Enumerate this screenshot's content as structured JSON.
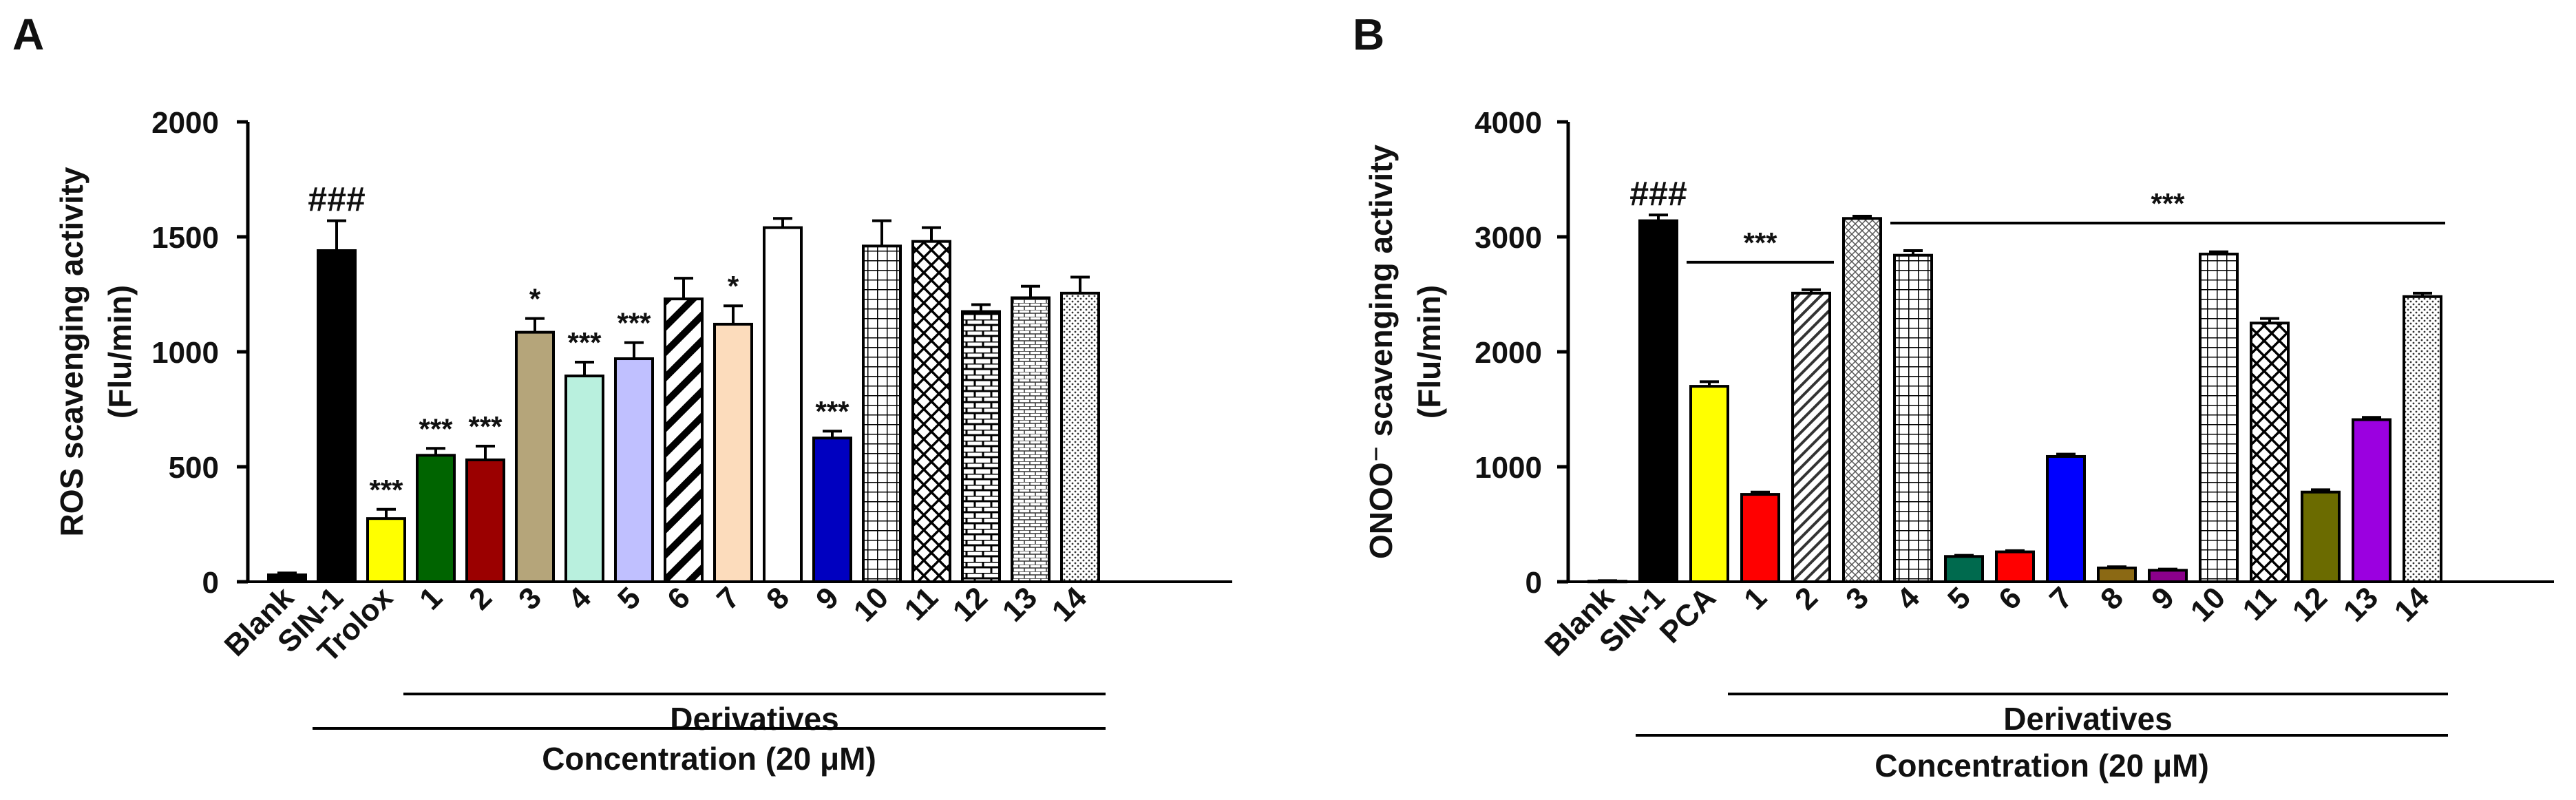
{
  "figure": {
    "panels": [
      "A",
      "B"
    ]
  },
  "chart_data": [
    {
      "panel": "A",
      "type": "bar",
      "title": "",
      "ylabel": "ROS scavenging activity (Flu/min)",
      "ylabel_lines": [
        "ROS scavenging activity",
        "(Flu/min)"
      ],
      "xlabel": "Concentration (20 μM)",
      "group_label": "Derivatives",
      "ylim": [
        0,
        2000
      ],
      "yticks": [
        "0",
        "500",
        "1000",
        "1500",
        "2000"
      ],
      "categories": [
        "Blank",
        "SIN-1",
        "Trolox",
        "1",
        "2",
        "3",
        "4",
        "5",
        "6",
        "7",
        "8",
        "9",
        "10",
        "11",
        "12",
        "13",
        "14"
      ],
      "values": [
        30,
        1440,
        275,
        550,
        530,
        1085,
        895,
        970,
        1230,
        1120,
        1540,
        625,
        1460,
        1480,
        1175,
        1235,
        1255
      ],
      "errors": [
        8,
        130,
        40,
        30,
        60,
        60,
        60,
        70,
        90,
        80,
        40,
        30,
        110,
        60,
        30,
        50,
        70
      ],
      "annotations": [
        "",
        "###",
        "***",
        "***",
        "***",
        "*",
        "***",
        "***",
        "",
        "*",
        "",
        "***",
        "",
        "",
        "",
        "",
        ""
      ],
      "fills": [
        "#000000",
        "#000000",
        "#ffff00",
        "#006400",
        "#9b0000",
        "#b5a57a",
        "#b9f0de",
        "#c0c0ff",
        "hatch-diag",
        "#fcdcbc",
        "#ffffff",
        "#0000c0",
        "grid",
        "crosshatch",
        "brick",
        "brick-fine",
        "dots"
      ],
      "grid": false,
      "legend": "none"
    },
    {
      "panel": "B",
      "type": "bar",
      "title": "",
      "ylabel": "ONOO⁻ scavenging activity (Flu/min)",
      "ylabel_lines": [
        "ONOO⁻ scavenging activity",
        "(Flu/min)"
      ],
      "xlabel": "Concentration (20 μM)",
      "group_label": "Derivatives",
      "ylim": [
        0,
        4000
      ],
      "yticks": [
        "0",
        "1000",
        "2000",
        "3000",
        "4000"
      ],
      "categories": [
        "Blank",
        "SIN-1",
        "PCA",
        "1",
        "2",
        "3",
        "4",
        "5",
        "6",
        "7",
        "8",
        "9",
        "10",
        "11",
        "12",
        "13",
        "14"
      ],
      "values": [
        5,
        3140,
        1700,
        760,
        2510,
        3160,
        2840,
        220,
        260,
        1090,
        120,
        100,
        2850,
        2250,
        780,
        1410,
        2480
      ],
      "errors": [
        5,
        50,
        40,
        20,
        30,
        20,
        40,
        10,
        10,
        20,
        10,
        10,
        20,
        40,
        20,
        20,
        30
      ],
      "annotations": [
        "",
        "###",
        "",
        "",
        "",
        "",
        "",
        "",
        "",
        "",
        "",
        "",
        "",
        "",
        "",
        "",
        ""
      ],
      "sig_lines": [
        {
          "from": "PCA",
          "to": "2",
          "label": "***"
        },
        {
          "from": "4",
          "to": "14",
          "label": "***"
        }
      ],
      "fills": [
        "#000000",
        "#000000",
        "#ffff00",
        "#ff0000",
        "hatch-diag-fine",
        "crosshatch-fine",
        "grid",
        "#006a4e",
        "#ff0000",
        "#0000ff",
        "#8b6914",
        "#8b008b",
        "grid",
        "crosshatch",
        "#6b6b00",
        "#9b00e0",
        "dots"
      ],
      "grid": false,
      "legend": "none"
    }
  ]
}
